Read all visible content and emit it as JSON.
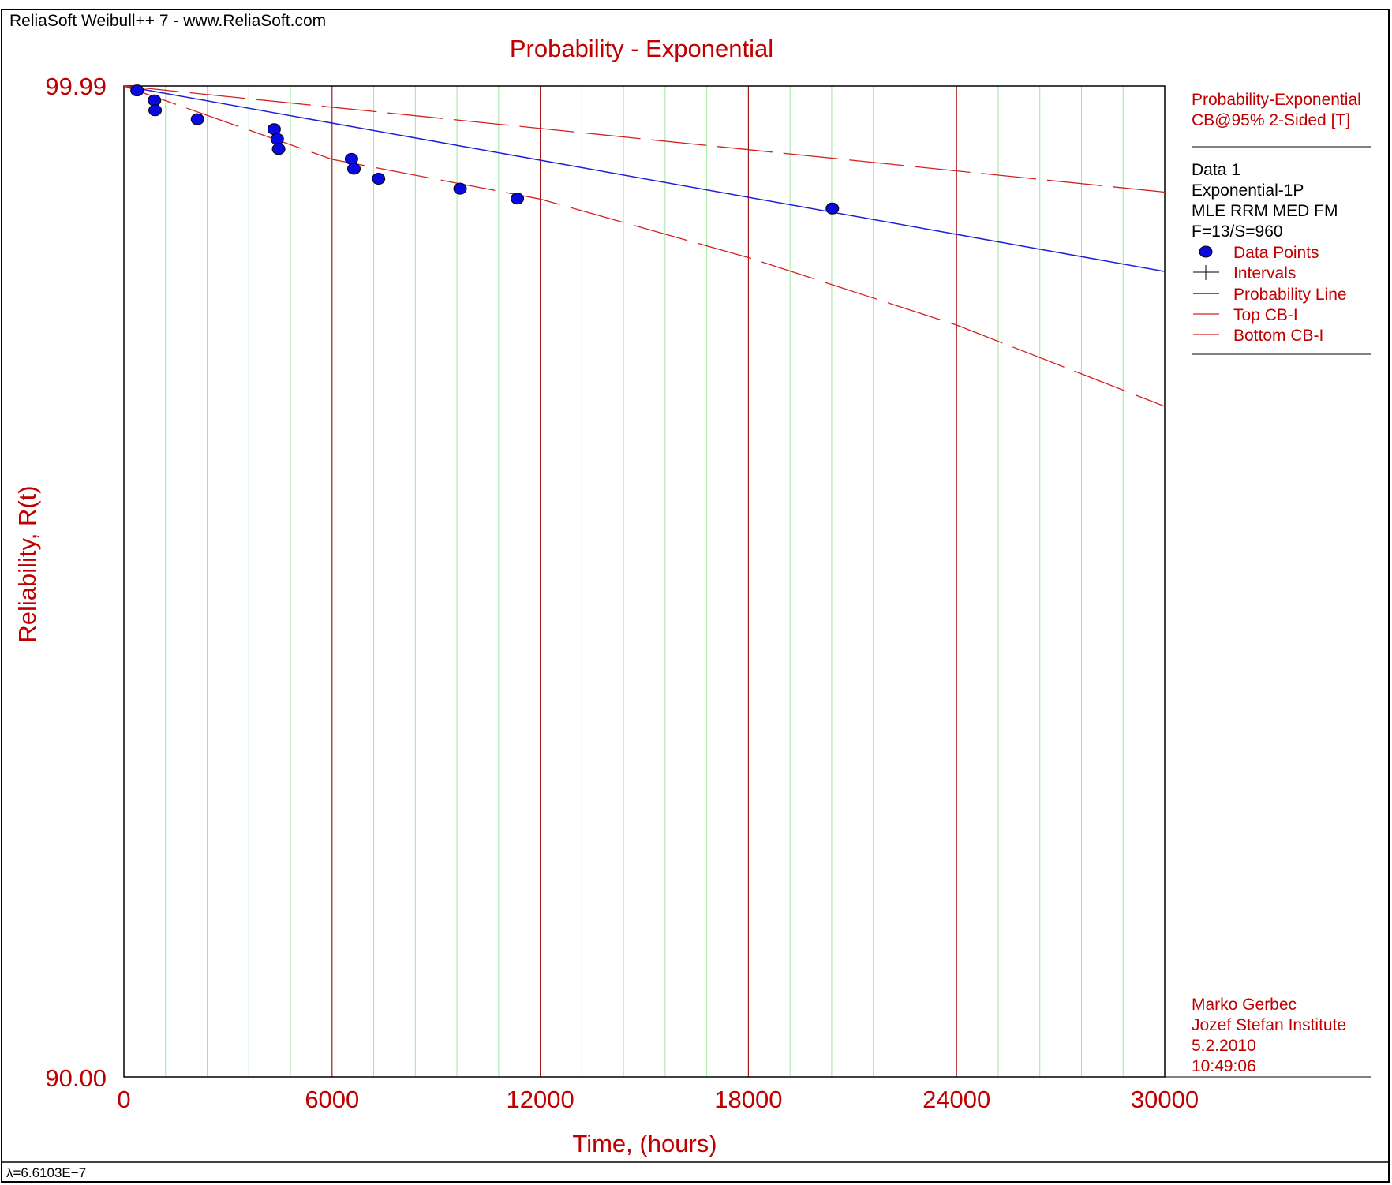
{
  "header": {
    "app_title": "ReliaSoft Weibull++ 7 - www.ReliaSoft.com"
  },
  "footer": {
    "parameter": "λ=6.6103E−7"
  },
  "colors": {
    "accent": "#c00000",
    "line": "#1f1fd6",
    "point": "#0a0ae0",
    "minor_grid": "#9ee89e",
    "major_grid": "#a01818",
    "text": "#000000"
  },
  "legend": {
    "header_lines": [
      "Probability-Exponential",
      "CB@95% 2-Sided [T]"
    ],
    "info_lines": [
      "Data 1",
      "Exponential-1P",
      "MLE RRM MED FM",
      "F=13/S=960"
    ],
    "entries": [
      {
        "label": "Data Points",
        "marker": "dot"
      },
      {
        "label": "Intervals",
        "marker": "cross"
      },
      {
        "label": "Probability Line",
        "marker": "blue-line"
      },
      {
        "label": "Top CB-I",
        "marker": "red-line"
      },
      {
        "label": "Bottom CB-I",
        "marker": "red-line"
      }
    ]
  },
  "signature": {
    "lines": [
      "Marko Gerbec",
      "Jozef Stefan Institute",
      "5.2.2010",
      "10:49:06"
    ]
  },
  "chart_data": {
    "type": "scatter",
    "title": "Probability - Exponential",
    "xlabel": "Time, (hours)",
    "ylabel": "Reliability, R(t)",
    "xlim": [
      0,
      30000
    ],
    "ylim": [
      90.0,
      99.99
    ],
    "x_ticks": [
      0,
      6000,
      12000,
      18000,
      24000,
      30000
    ],
    "y_tick_labels": [
      "99.99",
      "90.00"
    ],
    "grid": true,
    "legend_position": "right",
    "series": [
      {
        "name": "Data Points",
        "kind": "points",
        "x": [
          380,
          880,
          900,
          2120,
          4330,
          4420,
          4460,
          6560,
          6630,
          7340,
          9690,
          11340,
          20420
        ],
        "y": [
          99.945,
          99.845,
          99.745,
          99.655,
          99.555,
          99.455,
          99.355,
          99.255,
          99.155,
          99.055,
          98.955,
          98.855,
          98.755
        ]
      },
      {
        "name": "Probability Line",
        "kind": "line",
        "x": [
          0,
          30000
        ],
        "y": [
          99.99,
          98.12
        ]
      },
      {
        "name": "Top CB-I",
        "kind": "dashed",
        "x": [
          0,
          30000
        ],
        "y": [
          99.99,
          98.92
        ]
      },
      {
        "name": "Bottom CB-I",
        "kind": "dashed",
        "x": [
          0,
          6000,
          12000,
          18000,
          24000,
          30000
        ],
        "y": [
          99.99,
          99.25,
          98.85,
          98.26,
          97.58,
          96.76
        ]
      }
    ]
  }
}
